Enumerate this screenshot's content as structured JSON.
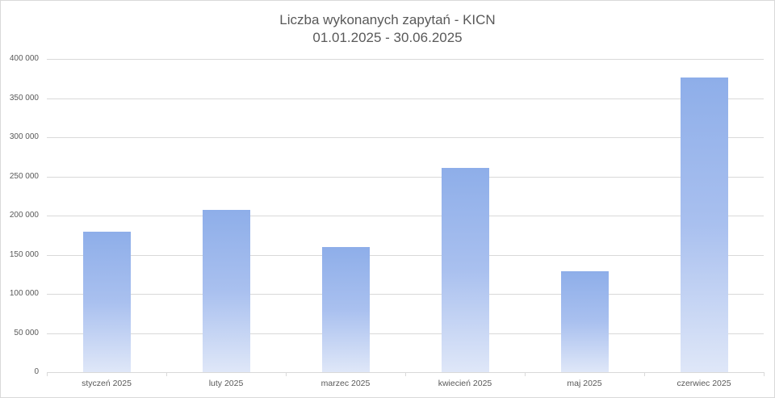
{
  "header": {
    "title_line1": "Liczba wykonanych zapytań - KICN",
    "title_line2": "01.01.2025 - 30.06.2025"
  },
  "colors": {
    "bar_top": "#8eaee9",
    "bar_bottom": "#dfe7f8",
    "grid": "#d9d9d9",
    "text": "#595959"
  },
  "y_axis": {
    "ticks": [
      "400 000",
      "350 000",
      "300 000",
      "250 000",
      "200 000",
      "150 000",
      "100 000",
      "50 000",
      "0"
    ]
  },
  "x_axis": {
    "labels": [
      "styczeń 2025",
      "luty 2025",
      "marzec 2025",
      "kwiecień 2025",
      "maj 2025",
      "czerwiec 2025"
    ]
  },
  "chart_data": {
    "type": "bar",
    "title": "Liczba wykonanych zapytań - KICN 01.01.2025 - 30.06.2025",
    "categories": [
      "styczeń 2025",
      "luty 2025",
      "marzec 2025",
      "kwiecień 2025",
      "maj 2025",
      "czerwiec 2025"
    ],
    "values": [
      179000,
      207000,
      160000,
      261000,
      129000,
      376000
    ],
    "xlabel": "",
    "ylabel": "",
    "ylim": [
      0,
      400000
    ],
    "yticks": [
      0,
      50000,
      100000,
      150000,
      200000,
      250000,
      300000,
      350000,
      400000
    ],
    "grid": true,
    "legend": "none"
  }
}
